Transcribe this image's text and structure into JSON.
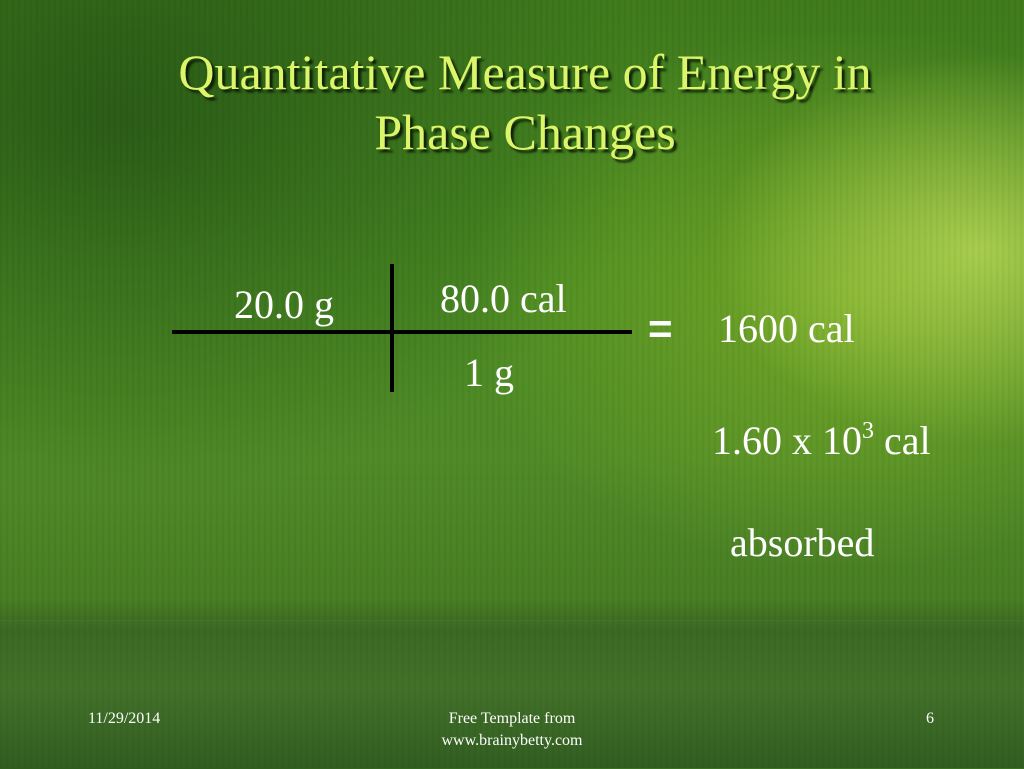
{
  "slide": {
    "title_line1": "Quantitative Measure of Energy in",
    "title_line2": "Phase Changes"
  },
  "calculation": {
    "mass": "20.0 g",
    "numerator": "80.0 cal",
    "denominator": "1 g",
    "equals": "=",
    "result": "1600 cal",
    "sci_coefficient": "1.60 x 10",
    "sci_exponent": "3",
    "sci_unit": "cal",
    "note": "absorbed"
  },
  "footer": {
    "date": "11/29/2014",
    "credit_line1": "Free Template from",
    "credit_line2": "www.brainybetty.com",
    "page_number": "6"
  }
}
